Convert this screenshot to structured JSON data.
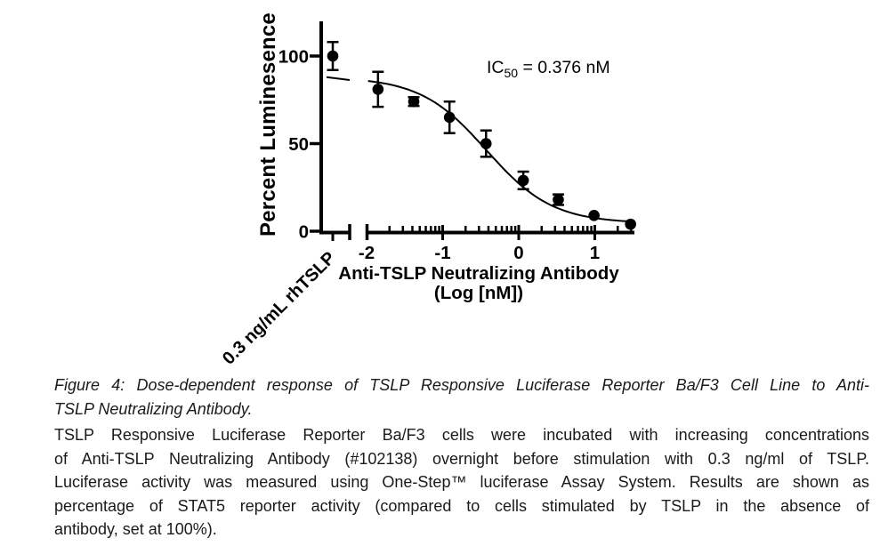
{
  "chart_data": {
    "type": "scatter",
    "title": "",
    "ylabel": "Percent Luminesence",
    "xlabel_line1": "Anti-TSLP Neutralizing Antibody",
    "xlabel_line2": "(Log [nM])",
    "annotation": {
      "prefix": "IC",
      "sub": "50",
      "suffix": " = 0.376 nM"
    },
    "ic50_nM": 0.376,
    "x_ticks": [
      -2,
      -1,
      0,
      1
    ],
    "x_tick_labels": [
      "-2",
      "-1",
      "0",
      "1"
    ],
    "y_ticks": [
      0,
      50,
      100
    ],
    "y_tick_labels": [
      "0",
      "50",
      "100"
    ],
    "xlim": [
      -2,
      1.51
    ],
    "ylim": [
      0,
      115
    ],
    "axis_break": true,
    "grid": false,
    "control": {
      "label": "0.3 ng/mL rhTSLP",
      "percent": 100,
      "error": 8
    },
    "series": [
      {
        "name": "Anti-TSLP Neutralizing Antibody",
        "points": [
          {
            "log_nm": -1.85,
            "percent": 81,
            "error": 10
          },
          {
            "log_nm": -1.38,
            "percent": 74,
            "error": 2.5
          },
          {
            "log_nm": -0.91,
            "percent": 65,
            "error": 9
          },
          {
            "log_nm": -0.43,
            "percent": 50,
            "error": 7.5
          },
          {
            "log_nm": 0.06,
            "percent": 29,
            "error": 5
          },
          {
            "log_nm": 0.52,
            "percent": 18,
            "error": 3
          },
          {
            "log_nm": 0.99,
            "percent": 9,
            "error": 1.5
          },
          {
            "log_nm": 1.47,
            "percent": 4,
            "error": 1
          }
        ]
      }
    ],
    "fit_curve": {
      "model": "sigmoidal dose-response",
      "top": 88,
      "bottom": 4.5,
      "ic50_log": -0.425,
      "hill": 1.0
    },
    "colors": {
      "marker": "#000000",
      "axis": "#000000",
      "curve": "#000000"
    }
  },
  "caption": {
    "title_lines": [
      "Figure 4: Dose-dependent response of TSLP Responsive Luciferase Reporter Ba/F3 Cell Line to Anti-",
      "TSLP Neutralizing Antibody."
    ],
    "body_lines": [
      "TSLP Responsive Luciferase Reporter Ba/F3 cells were incubated with increasing concentrations",
      "of Anti-TSLP Neutralizing Antibody (#102138) overnight before stimulation with 0.3 ng/ml of TSLP.",
      "Luciferase activity was measured using One-Step™ luciferase Assay System. Results are shown as",
      "percentage of STAT5 reporter activity (compared to cells stimulated by TSLP in the absence of",
      "antibody, set at 100%)."
    ]
  }
}
